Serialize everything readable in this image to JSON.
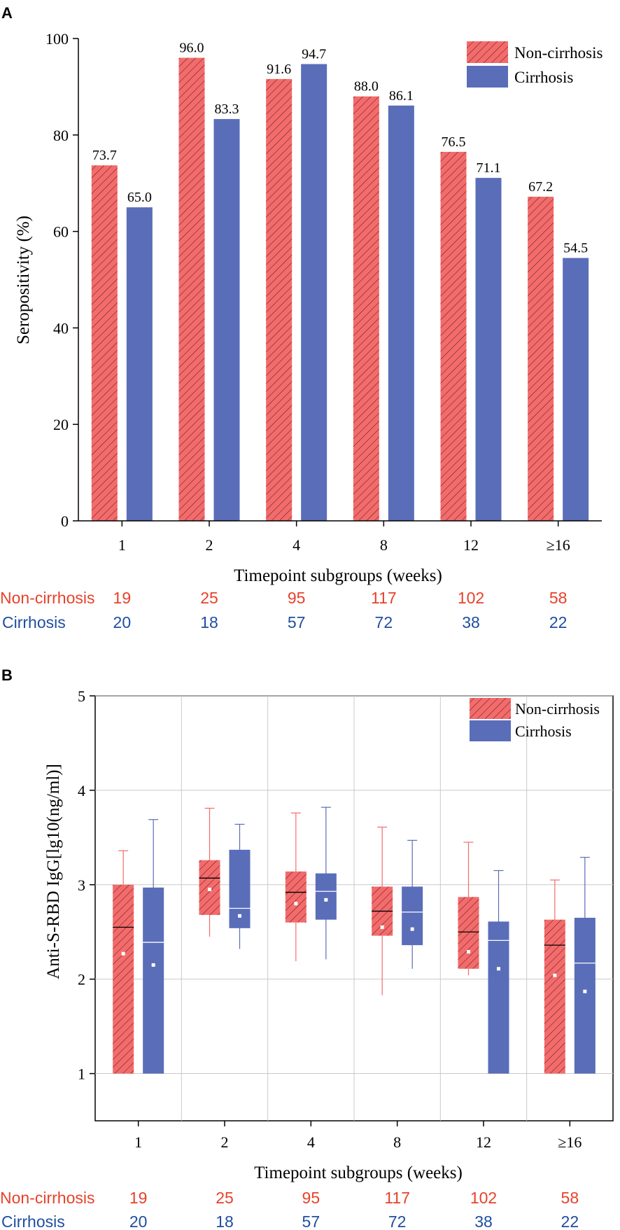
{
  "colors": {
    "noncirrhosis": "#f46b6b",
    "noncirrhosis_hatch": "#5a2020",
    "cirrhosis": "#5a6db9",
    "noncirrhosis_text": "#e8412a",
    "cirrhosis_text": "#1f4ea1",
    "grid": "#c9c9c9"
  },
  "chart_data": [
    {
      "panel_label": "A",
      "type": "bar",
      "title": "",
      "xlabel": "Timepoint subgroups (weeks)",
      "ylabel": "Seropositivity (%)",
      "ylim": [
        0,
        100
      ],
      "yticks": [
        0,
        20,
        40,
        60,
        80,
        100
      ],
      "categories": [
        "1",
        "2",
        "4",
        "8",
        "12",
        "≥16"
      ],
      "series": [
        {
          "name": "Non-cirrhosis",
          "values": [
            73.7,
            96.0,
            91.6,
            88.0,
            76.5,
            67.2
          ],
          "labels": [
            "73.7",
            "96.0",
            "91.6",
            "88.0",
            "76.5",
            "67.2"
          ]
        },
        {
          "name": "Cirrhosis",
          "values": [
            65.0,
            83.3,
            94.7,
            86.1,
            71.1,
            54.5
          ],
          "labels": [
            "65.0",
            "83.3",
            "94.7",
            "86.1",
            "71.1",
            "54.5"
          ]
        }
      ],
      "legend": [
        "Non-cirrhosis",
        "Cirrhosis"
      ],
      "legend_position": "top-right",
      "counts": {
        "rows": [
          {
            "name": "Non-cirrhosis",
            "values": [
              "19",
              "25",
              "95",
              "117",
              "102",
              "58"
            ]
          },
          {
            "name": "Cirrhosis",
            "values": [
              "20",
              "18",
              "57",
              "72",
              "38",
              "22"
            ]
          }
        ]
      }
    },
    {
      "panel_label": "B",
      "type": "box",
      "title": "",
      "xlabel": "Timepoint subgroups (weeks)",
      "ylabel": "Anti-S-RBD IgG[lg10(ng/ml)]",
      "ylim": [
        0.5,
        5
      ],
      "yticks": [
        1,
        2,
        3,
        4,
        5
      ],
      "grid": true,
      "categories": [
        "1",
        "2",
        "4",
        "8",
        "12",
        "≥16"
      ],
      "series": [
        {
          "name": "Non-cirrhosis",
          "boxes": [
            {
              "min": 1.0,
              "q1": 1.0,
              "median": 2.55,
              "q3": 3.0,
              "max": 3.36,
              "mean": 2.27
            },
            {
              "min": 2.45,
              "q1": 2.68,
              "median": 3.07,
              "q3": 3.26,
              "max": 3.81,
              "mean": 2.95
            },
            {
              "min": 2.19,
              "q1": 2.6,
              "median": 2.92,
              "q3": 3.14,
              "max": 3.76,
              "mean": 2.8
            },
            {
              "min": 1.83,
              "q1": 2.46,
              "median": 2.72,
              "q3": 2.98,
              "max": 3.61,
              "mean": 2.55
            },
            {
              "min": 2.04,
              "q1": 2.11,
              "median": 2.5,
              "q3": 2.87,
              "max": 3.45,
              "mean": 2.29
            },
            {
              "min": 1.0,
              "q1": 1.0,
              "median": 2.36,
              "q3": 2.63,
              "max": 3.05,
              "mean": 2.04
            }
          ]
        },
        {
          "name": "Cirrhosis",
          "boxes": [
            {
              "min": 1.0,
              "q1": 1.0,
              "median": 2.39,
              "q3": 2.97,
              "max": 3.69,
              "mean": 2.15
            },
            {
              "min": 2.32,
              "q1": 2.54,
              "median": 2.75,
              "q3": 3.37,
              "max": 3.64,
              "mean": 2.67
            },
            {
              "min": 2.21,
              "q1": 2.63,
              "median": 2.93,
              "q3": 3.12,
              "max": 3.82,
              "mean": 2.84
            },
            {
              "min": 2.11,
              "q1": 2.36,
              "median": 2.71,
              "q3": 2.98,
              "max": 3.47,
              "mean": 2.53
            },
            {
              "min": 1.0,
              "q1": 1.0,
              "median": 2.41,
              "q3": 2.61,
              "max": 3.15,
              "mean": 2.11
            },
            {
              "min": 1.0,
              "q1": 1.0,
              "median": 2.17,
              "q3": 2.65,
              "max": 3.29,
              "mean": 1.87
            }
          ]
        }
      ],
      "legend": [
        "Non-cirrhosis",
        "Cirrhosis"
      ],
      "legend_position": "top-right",
      "counts": {
        "rows": [
          {
            "name": "Non-cirrhosis",
            "values": [
              "19",
              "25",
              "95",
              "117",
              "102",
              "58"
            ]
          },
          {
            "name": "Cirrhosis",
            "values": [
              "20",
              "18",
              "57",
              "72",
              "38",
              "22"
            ]
          }
        ]
      }
    }
  ]
}
